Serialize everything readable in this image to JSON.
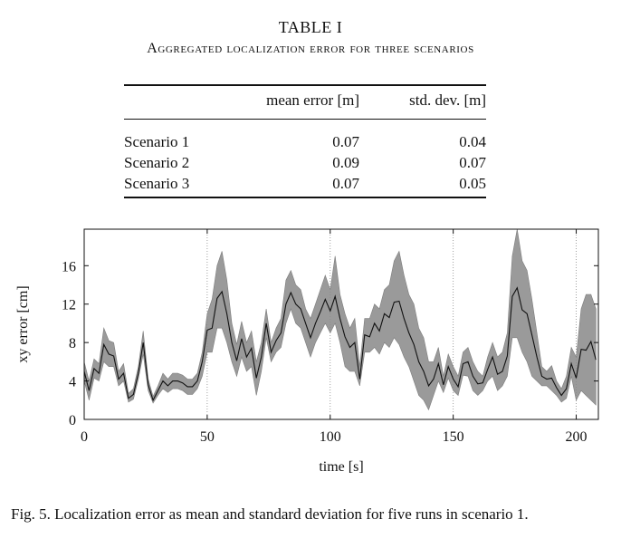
{
  "table": {
    "title": "TABLE I",
    "subtitle": "Aggregated localization error for three scenarios",
    "headers": [
      "",
      "mean error [m]",
      "std. dev. [m]"
    ],
    "rows": [
      {
        "label": "Scenario 1",
        "mean": "0.07",
        "std": "0.04"
      },
      {
        "label": "Scenario 2",
        "mean": "0.09",
        "std": "0.07"
      },
      {
        "label": "Scenario 3",
        "mean": "0.07",
        "std": "0.05"
      }
    ]
  },
  "chart_data": {
    "type": "line",
    "title": "",
    "xlabel": "time [s]",
    "ylabel": "xy error [cm]",
    "xlim": [
      0,
      209
    ],
    "ylim": [
      0,
      19.8
    ],
    "xticks": [
      0,
      50,
      100,
      150,
      200
    ],
    "yticks": [
      0,
      4,
      8,
      12,
      16
    ],
    "vertical_gridlines": [
      50,
      100,
      150,
      200
    ],
    "series": [
      {
        "name": "mean",
        "x": [
          0,
          2,
          4,
          6,
          8,
          10,
          12,
          14,
          16,
          18,
          20,
          22,
          24,
          26,
          28,
          30,
          32,
          34,
          36,
          38,
          40,
          42,
          44,
          46,
          48,
          50,
          52,
          54,
          56,
          58,
          60,
          62,
          64,
          66,
          68,
          70,
          72,
          74,
          76,
          78,
          80,
          82,
          84,
          86,
          88,
          90,
          92,
          94,
          96,
          98,
          100,
          102,
          104,
          106,
          108,
          110,
          112,
          114,
          116,
          118,
          120,
          122,
          124,
          126,
          128,
          130,
          132,
          134,
          136,
          138,
          140,
          142,
          144,
          146,
          148,
          150,
          152,
          154,
          156,
          158,
          160,
          162,
          164,
          166,
          168,
          170,
          172,
          174,
          176,
          178,
          180,
          182,
          184,
          186,
          188,
          190,
          192,
          194,
          196,
          198,
          200,
          202,
          204,
          206,
          208
        ],
        "values": [
          5.0,
          3.0,
          5.3,
          4.8,
          7.8,
          6.8,
          6.6,
          4.2,
          4.8,
          2.2,
          2.6,
          4.8,
          8.0,
          3.6,
          2.0,
          3.0,
          4.0,
          3.5,
          4.0,
          4.0,
          3.8,
          3.4,
          3.4,
          4.0,
          6.0,
          9.3,
          9.5,
          12.6,
          13.3,
          11.0,
          8.0,
          6.1,
          8.4,
          6.5,
          7.4,
          4.3,
          6.5,
          10.0,
          7.0,
          8.2,
          9.0,
          12.0,
          13.2,
          12.0,
          11.5,
          10.0,
          8.5,
          10.0,
          11.2,
          12.5,
          11.3,
          12.8,
          10.5,
          8.6,
          7.5,
          8.0,
          4.2,
          8.8,
          8.6,
          10.0,
          9.2,
          11.0,
          10.6,
          12.2,
          12.3,
          10.5,
          9.0,
          7.8,
          6.0,
          5.0,
          3.5,
          4.2,
          5.8,
          3.6,
          5.5,
          4.2,
          3.4,
          5.8,
          6.0,
          4.5,
          3.7,
          3.8,
          5.2,
          6.5,
          4.7,
          5.0,
          6.6,
          12.8,
          13.7,
          11.4,
          11.0,
          8.8,
          6.5,
          4.5,
          4.2,
          4.3,
          3.3,
          2.5,
          3.2,
          5.8,
          4.3,
          7.3,
          7.2,
          8.1,
          6.2
        ]
      },
      {
        "name": "std. dev. band",
        "x": [
          0,
          2,
          4,
          6,
          8,
          10,
          12,
          14,
          16,
          18,
          20,
          22,
          24,
          26,
          28,
          30,
          32,
          34,
          36,
          38,
          40,
          42,
          44,
          46,
          48,
          50,
          52,
          54,
          56,
          58,
          60,
          62,
          64,
          66,
          68,
          70,
          72,
          74,
          76,
          78,
          80,
          82,
          84,
          86,
          88,
          90,
          92,
          94,
          96,
          98,
          100,
          102,
          104,
          106,
          108,
          110,
          112,
          114,
          116,
          118,
          120,
          122,
          124,
          126,
          128,
          130,
          132,
          134,
          136,
          138,
          140,
          142,
          144,
          146,
          148,
          150,
          152,
          154,
          156,
          158,
          160,
          162,
          164,
          166,
          168,
          170,
          172,
          174,
          176,
          178,
          180,
          182,
          184,
          186,
          188,
          190,
          192,
          194,
          196,
          198,
          200,
          202,
          204,
          206,
          208
        ],
        "lower": [
          4.0,
          2.0,
          4.3,
          4.0,
          6.0,
          5.5,
          5.5,
          3.5,
          4.0,
          1.8,
          2.1,
          4.2,
          6.8,
          3.0,
          1.7,
          2.5,
          3.2,
          2.8,
          3.2,
          3.2,
          3.0,
          2.6,
          2.6,
          3.2,
          4.5,
          7.0,
          7.0,
          9.5,
          9.5,
          8.0,
          6.0,
          4.5,
          6.5,
          5.0,
          5.5,
          2.5,
          5.0,
          8.5,
          6.0,
          7.0,
          7.5,
          10.0,
          11.5,
          10.0,
          9.5,
          8.0,
          6.5,
          8.0,
          9.0,
          10.0,
          9.0,
          10.0,
          8.0,
          5.5,
          5.0,
          5.0,
          3.5,
          7.0,
          7.0,
          7.5,
          6.8,
          8.0,
          7.5,
          8.5,
          7.8,
          6.5,
          5.5,
          4.0,
          2.5,
          2.0,
          1.0,
          2.5,
          4.0,
          2.8,
          4.3,
          3.0,
          2.5,
          4.6,
          4.5,
          3.0,
          2.5,
          3.0,
          4.0,
          4.5,
          3.0,
          3.5,
          4.5,
          8.5,
          8.5,
          7.0,
          6.0,
          4.5,
          4.0,
          3.5,
          3.5,
          3.0,
          2.5,
          1.8,
          2.2,
          4.5,
          2.0,
          3.0,
          2.5,
          2.0,
          1.5
        ],
        "upper": [
          6.0,
          4.0,
          6.3,
          5.8,
          9.5,
          8.2,
          8.0,
          5.0,
          5.8,
          2.7,
          3.2,
          5.5,
          9.2,
          4.2,
          2.4,
          3.5,
          4.8,
          4.2,
          4.8,
          4.8,
          4.6,
          4.2,
          4.2,
          4.8,
          7.0,
          11.0,
          12.5,
          16.0,
          17.5,
          14.5,
          10.0,
          7.8,
          10.2,
          8.0,
          9.2,
          6.0,
          8.0,
          11.5,
          8.0,
          9.5,
          10.5,
          14.5,
          15.5,
          14.0,
          13.5,
          11.5,
          10.5,
          12.0,
          13.5,
          15.0,
          13.5,
          17.0,
          13.0,
          11.0,
          9.5,
          10.5,
          5.5,
          10.5,
          10.5,
          12.0,
          11.5,
          13.5,
          14.0,
          16.5,
          17.5,
          15.0,
          13.0,
          12.0,
          9.5,
          8.5,
          6.0,
          6.0,
          7.5,
          4.5,
          6.8,
          5.5,
          4.5,
          7.0,
          7.5,
          6.0,
          5.0,
          4.5,
          6.5,
          8.0,
          6.5,
          7.0,
          9.0,
          17.0,
          19.8,
          16.5,
          15.5,
          12.5,
          9.0,
          5.5,
          5.0,
          5.6,
          4.0,
          3.2,
          4.5,
          7.5,
          6.5,
          11.5,
          13.0,
          13.0,
          11.5
        ]
      }
    ]
  },
  "caption": "Fig. 5.   Localization error as mean and standard deviation for five runs in scenario 1."
}
